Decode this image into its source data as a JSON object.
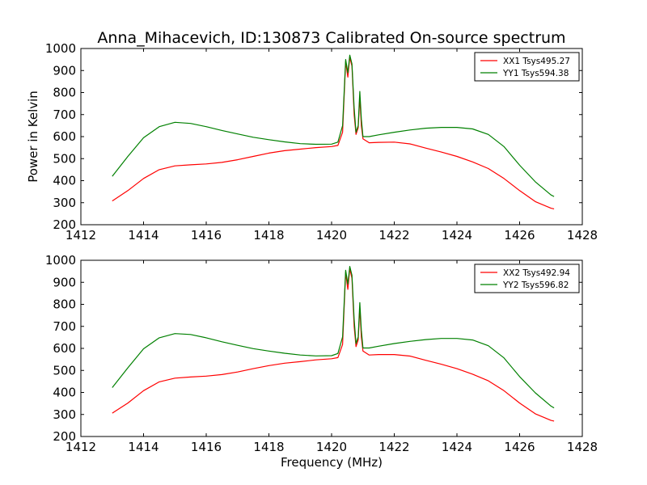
{
  "title": "Anna_Mihacevich, ID:130873 Calibrated On-source spectrum",
  "chart_data": [
    {
      "type": "line",
      "xlabel": "",
      "ylabel": "Power in Kelvin",
      "xlim": [
        1412,
        1428
      ],
      "ylim": [
        200,
        1000
      ],
      "xticks": [
        "1412",
        "1414",
        "1416",
        "1418",
        "1420",
        "1422",
        "1424",
        "1426",
        "1428"
      ],
      "yticks": [
        "200",
        "300",
        "400",
        "500",
        "600",
        "700",
        "800",
        "900",
        "1000"
      ],
      "legend_position": "top-right",
      "grid": false,
      "x": [
        1413.0,
        1413.5,
        1414.0,
        1414.5,
        1415.0,
        1415.5,
        1416.0,
        1416.5,
        1417.0,
        1417.5,
        1418.0,
        1418.5,
        1419.0,
        1419.5,
        1420.0,
        1420.2,
        1420.35,
        1420.45,
        1420.52,
        1420.58,
        1420.65,
        1420.72,
        1420.78,
        1420.85,
        1420.9,
        1420.95,
        1421.0,
        1421.2,
        1421.5,
        1422.0,
        1422.5,
        1423.0,
        1423.5,
        1424.0,
        1424.5,
        1425.0,
        1425.5,
        1426.0,
        1426.5,
        1427.0,
        1427.1
      ],
      "series": [
        {
          "name": "XX1 Tsys495.27",
          "color": "#ff0000",
          "values": [
            308,
            355,
            410,
            450,
            467,
            472,
            476,
            483,
            495,
            510,
            525,
            536,
            543,
            550,
            555,
            560,
            620,
            940,
            870,
            960,
            920,
            700,
            610,
            640,
            780,
            650,
            590,
            572,
            574,
            575,
            567,
            548,
            530,
            510,
            485,
            455,
            410,
            355,
            305,
            275,
            272
          ]
        },
        {
          "name": "YY1 Tsys594.38",
          "color": "#008000",
          "values": [
            420,
            510,
            595,
            645,
            665,
            660,
            645,
            628,
            612,
            597,
            586,
            576,
            568,
            565,
            566,
            575,
            650,
            950,
            890,
            970,
            930,
            730,
            620,
            650,
            805,
            680,
            600,
            600,
            608,
            620,
            630,
            638,
            642,
            642,
            635,
            610,
            555,
            470,
            395,
            335,
            328
          ]
        }
      ]
    },
    {
      "type": "line",
      "xlabel": "Frequency (MHz)",
      "ylabel": "",
      "xlim": [
        1412,
        1428
      ],
      "ylim": [
        200,
        1000
      ],
      "xticks": [
        "1412",
        "1414",
        "1416",
        "1418",
        "1420",
        "1422",
        "1424",
        "1426",
        "1428"
      ],
      "yticks": [
        "200",
        "300",
        "400",
        "500",
        "600",
        "700",
        "800",
        "900",
        "1000"
      ],
      "legend_position": "top-right",
      "grid": false,
      "x": [
        1413.0,
        1413.5,
        1414.0,
        1414.5,
        1415.0,
        1415.5,
        1416.0,
        1416.5,
        1417.0,
        1417.5,
        1418.0,
        1418.5,
        1419.0,
        1419.5,
        1420.0,
        1420.2,
        1420.35,
        1420.45,
        1420.52,
        1420.58,
        1420.65,
        1420.72,
        1420.78,
        1420.85,
        1420.9,
        1420.95,
        1421.0,
        1421.2,
        1421.5,
        1422.0,
        1422.5,
        1423.0,
        1423.5,
        1424.0,
        1424.5,
        1425.0,
        1425.5,
        1426.0,
        1426.5,
        1427.0,
        1427.1
      ],
      "series": [
        {
          "name": "XX2 Tsys492.94",
          "color": "#ff0000",
          "values": [
            306,
            352,
            408,
            448,
            465,
            470,
            474,
            481,
            493,
            508,
            522,
            533,
            540,
            548,
            553,
            558,
            618,
            945,
            868,
            962,
            918,
            700,
            608,
            638,
            785,
            652,
            588,
            570,
            572,
            572,
            565,
            546,
            528,
            508,
            483,
            453,
            408,
            352,
            303,
            273,
            270
          ]
        },
        {
          "name": "YY2 Tsys596.82",
          "color": "#008000",
          "values": [
            422,
            512,
            598,
            648,
            667,
            663,
            648,
            630,
            614,
            599,
            588,
            578,
            570,
            566,
            567,
            577,
            652,
            955,
            892,
            972,
            932,
            732,
            622,
            652,
            808,
            682,
            602,
            602,
            610,
            622,
            632,
            640,
            645,
            645,
            638,
            612,
            557,
            472,
            398,
            338,
            330
          ]
        }
      ]
    }
  ]
}
